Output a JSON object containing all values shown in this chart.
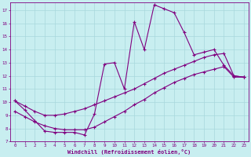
{
  "xlabel": "Windchill (Refroidissement éolien,°C)",
  "background_color": "#c8eef0",
  "grid_color": "#a8d8dc",
  "line_color": "#800080",
  "xlim": [
    -0.5,
    23.5
  ],
  "ylim": [
    7,
    17.6
  ],
  "xticks": [
    0,
    1,
    2,
    3,
    4,
    5,
    6,
    7,
    8,
    9,
    10,
    11,
    12,
    13,
    14,
    15,
    16,
    17,
    18,
    19,
    20,
    21,
    22,
    23
  ],
  "yticks": [
    7,
    8,
    9,
    10,
    11,
    12,
    13,
    14,
    15,
    16,
    17
  ],
  "series1_x": [
    0,
    1,
    2,
    3,
    4,
    5,
    6,
    7,
    8,
    9,
    10,
    11,
    12,
    13,
    14,
    15,
    16,
    17,
    18,
    19,
    20,
    21,
    22,
    23
  ],
  "series1_y": [
    10.1,
    9.4,
    8.6,
    7.8,
    7.7,
    7.7,
    7.7,
    7.5,
    9.1,
    12.9,
    13.0,
    11.0,
    16.1,
    14.0,
    17.4,
    17.1,
    16.8,
    15.3,
    13.6,
    13.8,
    14.0,
    12.8,
    12.0,
    11.9
  ],
  "series2_x": [
    0,
    1,
    2,
    3,
    4,
    5,
    6,
    7,
    8,
    9,
    10,
    11,
    12,
    13,
    14,
    15,
    16,
    17,
    18,
    19,
    20,
    21,
    22,
    23
  ],
  "series2_y": [
    10.1,
    9.7,
    9.3,
    9.0,
    9.0,
    9.1,
    9.3,
    9.5,
    9.8,
    10.1,
    10.4,
    10.7,
    11.0,
    11.4,
    11.8,
    12.2,
    12.5,
    12.8,
    13.1,
    13.4,
    13.6,
    13.7,
    12.0,
    11.9
  ],
  "series3_x": [
    0,
    1,
    2,
    3,
    4,
    5,
    6,
    7,
    8,
    9,
    10,
    11,
    12,
    13,
    14,
    15,
    16,
    17,
    18,
    19,
    20,
    21,
    22,
    23
  ],
  "series3_y": [
    9.3,
    8.9,
    8.5,
    8.2,
    8.0,
    7.9,
    7.9,
    7.9,
    8.1,
    8.5,
    8.9,
    9.3,
    9.8,
    10.2,
    10.7,
    11.1,
    11.5,
    11.8,
    12.1,
    12.3,
    12.5,
    12.7,
    11.9,
    11.9
  ]
}
